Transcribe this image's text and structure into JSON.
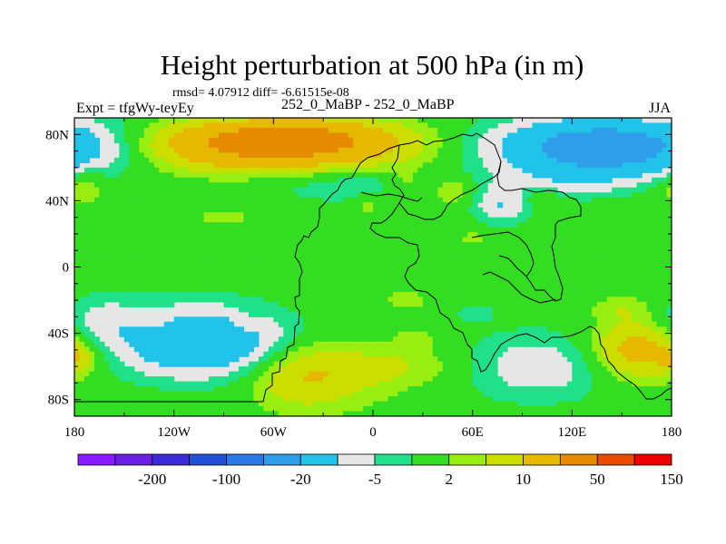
{
  "chart_data": {
    "type": "heatmap",
    "title": "Height perturbation at 500 hPa (in m)",
    "stats_text": "rmsd= 4.07912 diff= -6.61515e-08",
    "left_label": "Expt = tfgWy-teyEy",
    "center_label": "252_0_MaBP - 252_0_MaBP",
    "right_label": "JJA",
    "xlabel": "",
    "ylabel": "",
    "xlim": [
      -180,
      180
    ],
    "ylim": [
      -90,
      90
    ],
    "x_ticks": [
      {
        "value": -180,
        "label": "180"
      },
      {
        "value": -120,
        "label": "120W"
      },
      {
        "value": -60,
        "label": "60W"
      },
      {
        "value": 0,
        "label": "0"
      },
      {
        "value": 60,
        "label": "60E"
      },
      {
        "value": 120,
        "label": "120E"
      },
      {
        "value": 180,
        "label": "180"
      }
    ],
    "y_ticks": [
      {
        "value": 80,
        "label": "80N"
      },
      {
        "value": 40,
        "label": "40N"
      },
      {
        "value": 0,
        "label": "0"
      },
      {
        "value": -40,
        "label": "40S"
      },
      {
        "value": -80,
        "label": "80S"
      }
    ],
    "colorbar": {
      "colors": [
        "#8c1aff",
        "#6a1fe6",
        "#3b2bd9",
        "#2050d8",
        "#2a7ae8",
        "#2e9eea",
        "#22c3e8",
        "#e6e6e6",
        "#21e08a",
        "#33dd22",
        "#99ee11",
        "#ccdd00",
        "#e6b800",
        "#e68a00",
        "#ea4b00",
        "#ee0000"
      ],
      "labels": [
        {
          "after_index": 1,
          "text": "-200"
        },
        {
          "after_index": 3,
          "text": "-100"
        },
        {
          "after_index": 5,
          "text": "-20"
        },
        {
          "after_index": 7,
          "text": "-5"
        },
        {
          "after_index": 9,
          "text": "2"
        },
        {
          "after_index": 11,
          "text": "10"
        },
        {
          "after_index": 13,
          "text": "50"
        },
        {
          "after_index": 15,
          "text": "150"
        }
      ]
    },
    "field_features": [
      {
        "lon": -60,
        "lat": 72,
        "value": 22,
        "sx": 55,
        "sy": 10
      },
      {
        "lon": -50,
        "lat": 80,
        "value": 12,
        "sx": 40,
        "sy": 7
      },
      {
        "lon": 140,
        "lat": 72,
        "value": -30,
        "sx": 45,
        "sy": 12
      },
      {
        "lon": 112,
        "lat": 50,
        "value": -6,
        "sx": 22,
        "sy": 6
      },
      {
        "lon": -175,
        "lat": 50,
        "value": 6,
        "sx": 10,
        "sy": 8
      },
      {
        "lon": -10,
        "lat": 50,
        "value": -5,
        "sx": 38,
        "sy": 8
      },
      {
        "lon": 20,
        "lat": 50,
        "value": 5,
        "sx": 9,
        "sy": 7
      },
      {
        "lon": -4,
        "lat": 38,
        "value": 4,
        "sx": 6,
        "sy": 5
      },
      {
        "lon": 48,
        "lat": 46,
        "value": 6,
        "sx": 10,
        "sy": 6
      },
      {
        "lon": 78,
        "lat": 38,
        "value": -10,
        "sx": 12,
        "sy": 8
      },
      {
        "lon": 100,
        "lat": 44,
        "value": 5,
        "sx": 11,
        "sy": 6
      },
      {
        "lon": -90,
        "lat": 30,
        "value": 3,
        "sx": 15,
        "sy": 5
      },
      {
        "lon": 60,
        "lat": 17,
        "value": 3,
        "sx": 8,
        "sy": 4
      },
      {
        "lon": -165,
        "lat": -32,
        "value": -6,
        "sx": 16,
        "sy": 10
      },
      {
        "lon": -105,
        "lat": -45,
        "value": -20,
        "sx": 35,
        "sy": 14
      },
      {
        "lon": -130,
        "lat": -33,
        "value": 3,
        "sx": 9,
        "sy": 5
      },
      {
        "lon": -78,
        "lat": -33,
        "value": 3,
        "sx": 7,
        "sy": 5
      },
      {
        "lon": -178,
        "lat": -55,
        "value": 6,
        "sx": 8,
        "sy": 6
      },
      {
        "lon": -45,
        "lat": -65,
        "value": 9,
        "sx": 22,
        "sy": 14
      },
      {
        "lon": -15,
        "lat": -65,
        "value": 4,
        "sx": 25,
        "sy": 14
      },
      {
        "lon": 20,
        "lat": -60,
        "value": 4,
        "sx": 25,
        "sy": 8
      },
      {
        "lon": 20,
        "lat": -20,
        "value": 3,
        "sx": 12,
        "sy": 5
      },
      {
        "lon": 25,
        "lat": -45,
        "value": 4,
        "sx": 8,
        "sy": 5
      },
      {
        "lon": 62,
        "lat": -28,
        "value": -3,
        "sx": 10,
        "sy": 5
      },
      {
        "lon": 100,
        "lat": -60,
        "value": -8,
        "sx": 30,
        "sy": 14
      },
      {
        "lon": 160,
        "lat": -50,
        "value": 14,
        "sx": 20,
        "sy": 12
      },
      {
        "lon": 150,
        "lat": -25,
        "value": 4,
        "sx": 12,
        "sy": 5
      }
    ]
  }
}
